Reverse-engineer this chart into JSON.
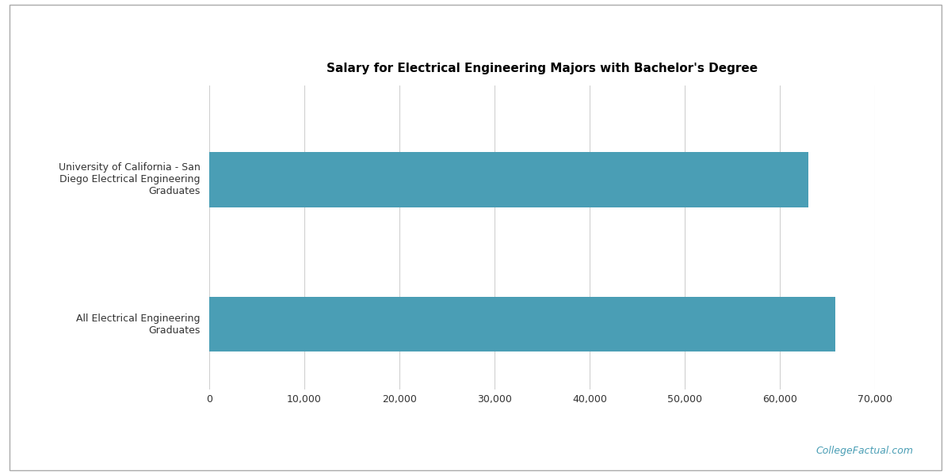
{
  "title": "Salary for Electrical Engineering Majors with Bachelor's Degree",
  "categories": [
    "University of California - San\nDiego Electrical Engineering\nGraduates",
    "All Electrical Engineering\nGraduates"
  ],
  "values": [
    63000,
    65800
  ],
  "bar_color": "#4a9eb5",
  "xlim": [
    0,
    70000
  ],
  "xticks": [
    0,
    10000,
    20000,
    30000,
    40000,
    50000,
    60000,
    70000
  ],
  "xtick_labels": [
    "0",
    "10,000",
    "20,000",
    "30,000",
    "40,000",
    "50,000",
    "60,000",
    "70,000"
  ],
  "background_color": "#ffffff",
  "grid_color": "#d0d0d0",
  "title_fontsize": 11,
  "tick_fontsize": 9,
  "label_fontsize": 9,
  "watermark": "CollegeFactual.com",
  "watermark_color": "#4a9eb5",
  "border_color": "#aaaaaa"
}
